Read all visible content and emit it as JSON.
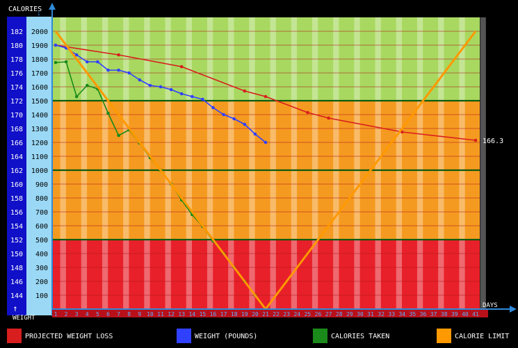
{
  "chart_data": {
    "type": "line",
    "axis_labels": {
      "left_top": "CALORIES",
      "left_bottom": "WEIGHT",
      "bottom_right": "DAYS"
    },
    "days": [
      1,
      2,
      3,
      4,
      5,
      6,
      7,
      8,
      9,
      10,
      11,
      12,
      13,
      14,
      15,
      16,
      17,
      18,
      19,
      20,
      21,
      22,
      23,
      24,
      25,
      26,
      27,
      28,
      29,
      30,
      31,
      32,
      33,
      34,
      35,
      36,
      37,
      38,
      39,
      40,
      41
    ],
    "calorie_axis": {
      "ticks": [
        100,
        200,
        300,
        400,
        500,
        600,
        700,
        800,
        900,
        1000,
        1100,
        1200,
        1300,
        1400,
        1500,
        1600,
        1700,
        1800,
        1900,
        2000
      ],
      "range": [
        0,
        2000
      ]
    },
    "weight_axis": {
      "ticks": [
        144,
        146,
        148,
        150,
        152,
        154,
        156,
        158,
        160,
        162,
        164,
        166,
        168,
        170,
        172,
        174,
        176,
        178,
        180,
        182
      ],
      "range": [
        142,
        182
      ]
    },
    "zones": [
      {
        "from": 0,
        "to": 500,
        "color": "#e8202a"
      },
      {
        "from": 500,
        "to": 1500,
        "color": "#f59a20"
      },
      {
        "from": 1500,
        "to": 2000,
        "color": "#a8d860"
      }
    ],
    "series": [
      {
        "name": "PROJECTED WEIGHT LOSS",
        "axis": "weight",
        "color": "#d81e1e",
        "x": [
          1,
          7,
          13,
          19,
          21,
          25,
          27,
          34,
          41
        ],
        "y": [
          180,
          178.6,
          176.9,
          173.4,
          172.6,
          170.3,
          169.5,
          167.5,
          166.3
        ]
      },
      {
        "name": "WEIGHT (POUNDS)",
        "axis": "weight",
        "color": "#3040ff",
        "x": [
          1,
          2,
          3,
          4,
          5,
          6,
          7,
          8,
          9,
          10,
          11,
          12,
          13,
          14,
          15,
          16,
          17,
          18,
          19,
          20,
          21
        ],
        "y": [
          180,
          179.6,
          178.6,
          177.6,
          177.6,
          176.4,
          176.4,
          176,
          175,
          174.2,
          174,
          173.6,
          173,
          172.6,
          172.2,
          171,
          170,
          169.4,
          168.6,
          167.2,
          166
        ]
      },
      {
        "name": "CALORIES TAKEN",
        "axis": "calories",
        "color": "#1a8a1a",
        "x": [
          1,
          2,
          3,
          4,
          5,
          6,
          7,
          8,
          9,
          10,
          11,
          12,
          13,
          14,
          15,
          16,
          17,
          18,
          19,
          20
        ],
        "y": [
          1775,
          1780,
          1530,
          1610,
          1585,
          1410,
          1250,
          1290,
          1195,
          1090,
          1000,
          900,
          785,
          680,
          595,
          490,
          400,
          300,
          200,
          100
        ]
      },
      {
        "name": "CALORIE LIMIT",
        "axis": "calories",
        "color": "#ff9900",
        "x": [
          1,
          21,
          41
        ],
        "y": [
          2000,
          0,
          2000
        ]
      }
    ],
    "end_label": "166.3",
    "legend_position": "bottom"
  }
}
